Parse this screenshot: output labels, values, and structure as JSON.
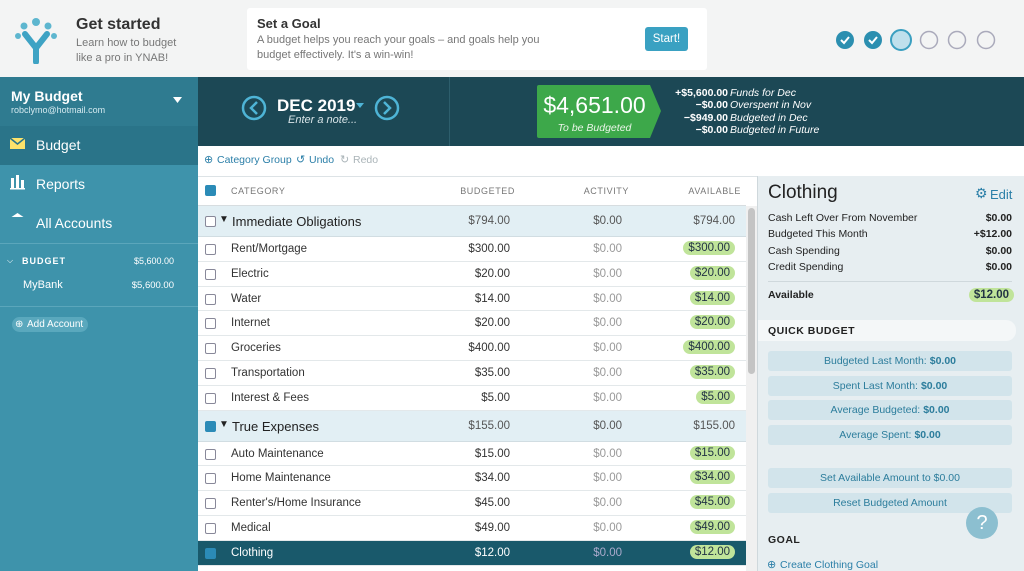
{
  "header": {
    "title": "Get started",
    "subtitle": "Learn how to budget like a pro in YNAB!"
  },
  "goal_card": {
    "title": "Set a Goal",
    "text": "A budget helps you reach your goals – and goals help you budget effectively. It's a win-win!",
    "button": "Start!"
  },
  "sidebar": {
    "budget_name": "My Budget",
    "email": "robclymo@hotmail.com",
    "nav": [
      "Budget",
      "Reports",
      "All Accounts"
    ],
    "accounts_group": {
      "label": "BUDGET",
      "total": "$5,600.00"
    },
    "accounts": [
      {
        "name": "MyBank",
        "balance": "$5,600.00"
      }
    ],
    "add_account": "Add Account"
  },
  "month": {
    "label": "DEC 2019",
    "note": "Enter a note..."
  },
  "to_be_budgeted": {
    "amount": "$4,651.00",
    "label": "To be Budgeted"
  },
  "summary": [
    {
      "amount": "+$5,600.00",
      "label": "Funds for Dec"
    },
    {
      "amount": "−$0.00",
      "label": "Overspent in Nov"
    },
    {
      "amount": "−$949.00",
      "label": "Budgeted in Dec"
    },
    {
      "amount": "−$0.00",
      "label": "Budgeted in Future"
    }
  ],
  "toolbar": [
    "Category Group",
    "Undo",
    "Redo"
  ],
  "table": {
    "columns": [
      "CATEGORY",
      "BUDGETED",
      "ACTIVITY",
      "AVAILABLE"
    ],
    "groups": [
      {
        "name": "Immediate Obligations",
        "budgeted": "$794.00",
        "activity": "$0.00",
        "available": "$794.00",
        "rows": [
          {
            "name": "Rent/Mortgage",
            "budgeted": "$300.00",
            "activity": "$0.00",
            "available": "$300.00"
          },
          {
            "name": "Electric",
            "budgeted": "$20.00",
            "activity": "$0.00",
            "available": "$20.00"
          },
          {
            "name": "Water",
            "budgeted": "$14.00",
            "activity": "$0.00",
            "available": "$14.00"
          },
          {
            "name": "Internet",
            "budgeted": "$20.00",
            "activity": "$0.00",
            "available": "$20.00"
          },
          {
            "name": "Groceries",
            "budgeted": "$400.00",
            "activity": "$0.00",
            "available": "$400.00"
          },
          {
            "name": "Transportation",
            "budgeted": "$35.00",
            "activity": "$0.00",
            "available": "$35.00"
          },
          {
            "name": "Interest & Fees",
            "budgeted": "$5.00",
            "activity": "$0.00",
            "available": "$5.00"
          }
        ]
      },
      {
        "name": "True Expenses",
        "budgeted": "$155.00",
        "activity": "$0.00",
        "available": "$155.00",
        "rows": [
          {
            "name": "Auto Maintenance",
            "budgeted": "$15.00",
            "activity": "$0.00",
            "available": "$15.00"
          },
          {
            "name": "Home Maintenance",
            "budgeted": "$34.00",
            "activity": "$0.00",
            "available": "$34.00"
          },
          {
            "name": "Renter's/Home Insurance",
            "budgeted": "$45.00",
            "activity": "$0.00",
            "available": "$45.00"
          },
          {
            "name": "Medical",
            "budgeted": "$49.00",
            "activity": "$0.00",
            "available": "$49.00"
          },
          {
            "name": "Clothing",
            "budgeted": "$12.00",
            "activity": "$0.00",
            "available": "$12.00",
            "selected": true
          }
        ]
      }
    ]
  },
  "inspector": {
    "title": "Clothing",
    "edit": "Edit",
    "lines": [
      {
        "label": "Cash Left Over From November",
        "value": "$0.00"
      },
      {
        "label": "Budgeted This Month",
        "value": "+$12.00"
      },
      {
        "label": "Cash Spending",
        "value": "$0.00"
      },
      {
        "label": "Credit Spending",
        "value": "$0.00"
      }
    ],
    "available": {
      "label": "Available",
      "value": "$12.00"
    },
    "quick_budget": {
      "title": "QUICK BUDGET",
      "buttons": [
        {
          "label": "Budgeted Last Month:",
          "value": "$0.00"
        },
        {
          "label": "Spent Last Month:",
          "value": "$0.00"
        },
        {
          "label": "Average Budgeted:",
          "value": "$0.00"
        },
        {
          "label": "Average Spent:",
          "value": "$0.00"
        }
      ],
      "actions": [
        "Set Available Amount to $0.00",
        "Reset Budgeted Amount"
      ]
    },
    "goal": {
      "title": "GOAL",
      "action": "Create Clothing Goal"
    },
    "help": "?"
  }
}
